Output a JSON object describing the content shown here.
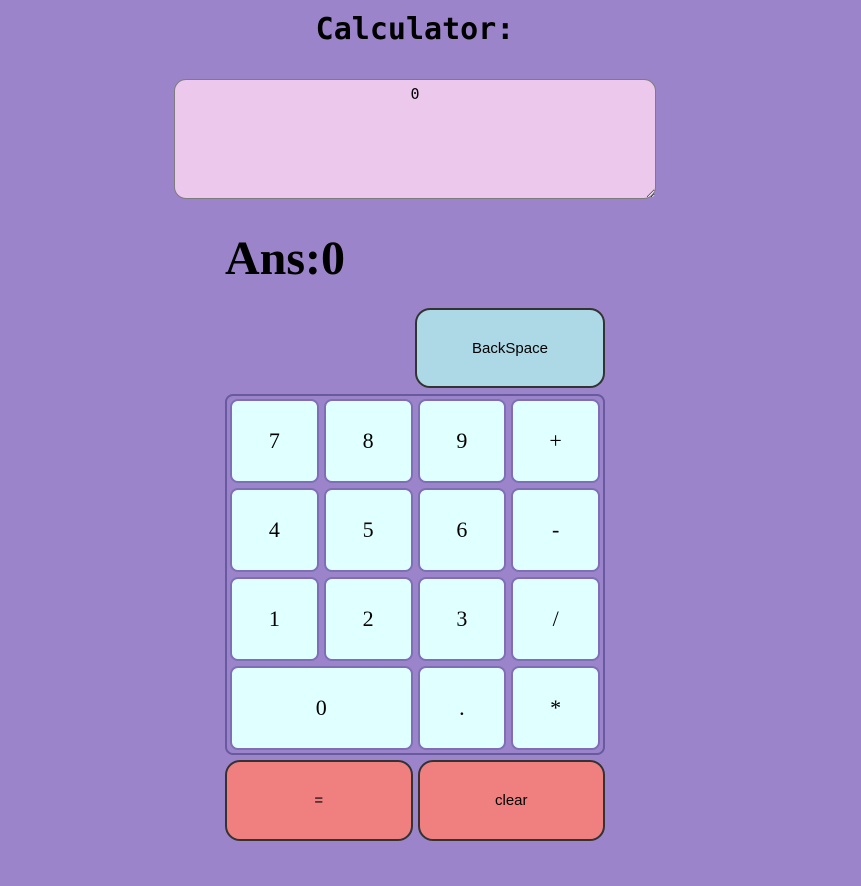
{
  "title": "Calculator:",
  "display": {
    "value": "0"
  },
  "ans": {
    "prefix": "Ans:",
    "value": "0"
  },
  "backspace": {
    "label": "BackSpace"
  },
  "keypad": {
    "keys": [
      {
        "label": "7"
      },
      {
        "label": "8"
      },
      {
        "label": "9"
      },
      {
        "label": "+"
      },
      {
        "label": "4"
      },
      {
        "label": "5"
      },
      {
        "label": "6"
      },
      {
        "label": "-"
      },
      {
        "label": "1"
      },
      {
        "label": "2"
      },
      {
        "label": "3"
      },
      {
        "label": "/"
      },
      {
        "label": "0"
      },
      {
        "label": "."
      },
      {
        "label": "*"
      }
    ]
  },
  "actions": {
    "equals_label": "=",
    "clear_label": "clear"
  },
  "colors": {
    "page_background": "#9b84c9",
    "display_background": "#ecc8ec",
    "display_border": "#7d7d7d",
    "key_background": "#e0ffff",
    "key_border": "#7f6eb6",
    "keypad_border": "#675a9e",
    "backspace_background": "#add8e6",
    "action_background": "#f08080",
    "text": "#000000"
  }
}
